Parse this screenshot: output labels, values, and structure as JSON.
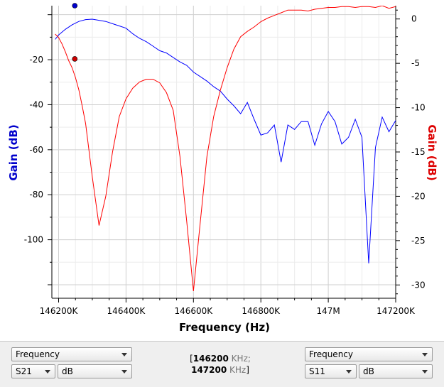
{
  "chart_data": {
    "type": "line",
    "xlabel": "Frequency (Hz)",
    "ylabel_left": "Gain (dB)",
    "ylabel_right": "Gain (dB)",
    "xlim": [
      146180,
      147200
    ],
    "ylim_left": [
      -126,
      4
    ],
    "ylim_right": [
      -31.5,
      1.5
    ],
    "x_ticks": [
      {
        "value": 146200,
        "label": "146200K"
      },
      {
        "value": 146400,
        "label": "146400K"
      },
      {
        "value": 146600,
        "label": "146600K"
      },
      {
        "value": 146800,
        "label": "146800K"
      },
      {
        "value": 147000,
        "label": "147M"
      },
      {
        "value": 147200,
        "label": "147200K"
      }
    ],
    "y_ticks_left": [
      -20,
      -40,
      -60,
      -80,
      -100
    ],
    "y_ticks_right": [
      0,
      -5,
      -10,
      -15,
      -20,
      -25,
      -30
    ],
    "grid": true,
    "series": [
      {
        "name": "S21",
        "axis": "left",
        "color": "#0000ff",
        "x": [
          146190,
          146200,
          146220,
          146240,
          146260,
          146280,
          146300,
          146320,
          146340,
          146360,
          146380,
          146400,
          146420,
          146440,
          146460,
          146480,
          146500,
          146520,
          146540,
          146560,
          146580,
          146600,
          146620,
          146640,
          146660,
          146680,
          146700,
          146720,
          146740,
          146760,
          146780,
          146800,
          146820,
          146840,
          146860,
          146880,
          146900,
          146920,
          146940,
          146960,
          146980,
          147000,
          147020,
          147040,
          147060,
          147080,
          147100,
          147120,
          147140,
          147160,
          147180,
          147200
        ],
        "y": [
          -11,
          -9,
          -6.5,
          -4.5,
          -3,
          -2.2,
          -2,
          -2.5,
          -3,
          -4,
          -5,
          -6,
          -8.5,
          -10.5,
          -12,
          -14,
          -16,
          -17,
          -19,
          -21,
          -22.5,
          -25.5,
          -27.5,
          -29.5,
          -32,
          -34,
          -37.5,
          -40.5,
          -44,
          -39,
          -46.5,
          -53.5,
          -52.5,
          -49,
          -65.5,
          -49,
          -51,
          -47.5,
          -47.5,
          -58,
          -48.5,
          -43,
          -47.5,
          -57.5,
          -54.5,
          -46.5,
          -54.5,
          -110.5,
          -59,
          -45.5,
          -52,
          -47
        ]
      },
      {
        "name": "S11",
        "axis": "right",
        "color": "#ff0000",
        "x": [
          146190,
          146200,
          146210,
          146220,
          146230,
          146240,
          146250,
          146260,
          146270,
          146280,
          146300,
          146320,
          146340,
          146360,
          146380,
          146400,
          146420,
          146440,
          146460,
          146480,
          146500,
          146520,
          146540,
          146560,
          146580,
          146600,
          146620,
          146640,
          146660,
          146680,
          146700,
          146720,
          146740,
          146760,
          146780,
          146800,
          146820,
          146840,
          146860,
          146880,
          146900,
          146920,
          146940,
          146960,
          146980,
          147000,
          147020,
          147040,
          147060,
          147080,
          147100,
          147120,
          147140,
          147160,
          147180,
          147200
        ],
        "y": [
          -1.7,
          -2.1,
          -2.8,
          -3.7,
          -4.7,
          -5.5,
          -6.6,
          -8,
          -9.8,
          -11.8,
          -17.8,
          -23.3,
          -20,
          -15,
          -11,
          -9,
          -7.8,
          -7.1,
          -6.8,
          -6.8,
          -7.2,
          -8.3,
          -10.3,
          -15.5,
          -22.8,
          -30.7,
          -23,
          -15.5,
          -11,
          -8,
          -5.5,
          -3.4,
          -2,
          -1.4,
          -0.9,
          -0.3,
          0.1,
          0.4,
          0.7,
          1,
          1,
          1,
          0.9,
          1.1,
          1.2,
          1.3,
          1.3,
          1.4,
          1.4,
          1.3,
          1.4,
          1.4,
          1.3,
          1.5,
          1.2,
          1.4
        ]
      }
    ],
    "markers": [
      {
        "series": "S21",
        "axis": "left",
        "x": 146248,
        "y": 4
      },
      {
        "series": "S11",
        "axis": "right",
        "x": 146248,
        "y": -4.5
      }
    ]
  },
  "controls": {
    "left_mode": "Frequency",
    "left_param": "S21",
    "left_unit": "dB",
    "right_mode": "Frequency",
    "right_param": "S11",
    "right_unit": "dB",
    "range_open": "[",
    "range_start": "146200",
    "range_start_unit": " KHz;",
    "range_end": "147200",
    "range_end_unit": " KHz",
    "range_close": "]"
  }
}
